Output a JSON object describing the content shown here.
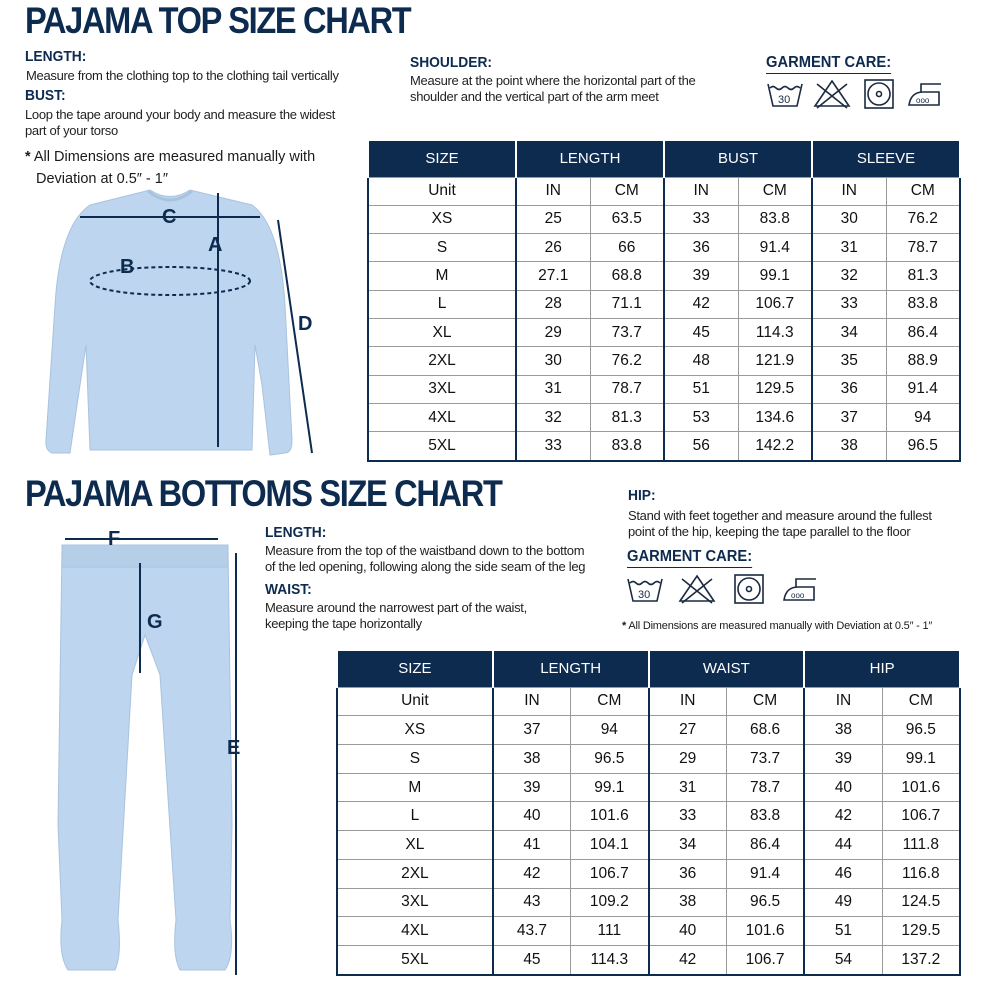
{
  "top": {
    "title": "PAJAMA TOP SIZE CHART",
    "length_label": "LENGTH:",
    "length_desc": "Measure from the clothing top to the clothing tail vertically",
    "bust_label": "BUST:",
    "bust_desc_1": "Loop the tape around your body and measure the widest",
    "bust_desc_2": "part of your torso",
    "note_1": "All Dimensions are measured manually with",
    "note_2": "Deviation at 0.5″ - 1″",
    "shoulder_label": "SHOULDER:",
    "shoulder_desc_1": "Measure at the point where the horizontal part of the",
    "shoulder_desc_2": "shoulder and the vertical part of the arm meet",
    "care_label": "GARMENT CARE:",
    "care_icons": [
      "wash-30-icon",
      "no-bleach-icon",
      "tumble-dry-icon",
      "iron-high-icon"
    ],
    "markers": {
      "a": "A",
      "b": "B",
      "c": "C",
      "d": "D"
    },
    "table": {
      "headers": [
        "SIZE",
        "LENGTH",
        "BUST",
        "SLEEVE"
      ],
      "unit_row": [
        "Unit",
        "IN",
        "CM",
        "IN",
        "CM",
        "IN",
        "CM"
      ],
      "rows": [
        [
          "XS",
          "25",
          "63.5",
          "33",
          "83.8",
          "30",
          "76.2"
        ],
        [
          "S",
          "26",
          "66",
          "36",
          "91.4",
          "31",
          "78.7"
        ],
        [
          "M",
          "27.1",
          "68.8",
          "39",
          "99.1",
          "32",
          "81.3"
        ],
        [
          "L",
          "28",
          "71.1",
          "42",
          "106.7",
          "33",
          "83.8"
        ],
        [
          "XL",
          "29",
          "73.7",
          "45",
          "114.3",
          "34",
          "86.4"
        ],
        [
          "2XL",
          "30",
          "76.2",
          "48",
          "121.9",
          "35",
          "88.9"
        ],
        [
          "3XL",
          "31",
          "78.7",
          "51",
          "129.5",
          "36",
          "91.4"
        ],
        [
          "4XL",
          "32",
          "81.3",
          "53",
          "134.6",
          "37",
          "94"
        ],
        [
          "5XL",
          "33",
          "83.8",
          "56",
          "142.2",
          "38",
          "96.5"
        ]
      ]
    }
  },
  "bottom": {
    "title": "PAJAMA BOTTOMS SIZE CHART",
    "length_label": "LENGTH:",
    "length_desc_1": "Measure from the top of the waistband down to the bottom",
    "length_desc_2": "of the led opening, following along the side seam of the leg",
    "waist_label": "WAIST:",
    "waist_desc_1": "Measure around the narrowest part of the waist,",
    "waist_desc_2": "keeping the tape horizontally",
    "hip_label": "HIP:",
    "hip_desc_1": "Stand with feet together and measure around the fullest",
    "hip_desc_2": "point of the hip, keeping the tape parallel to the floor",
    "care_label": "GARMENT CARE:",
    "note": "All Dimensions are measured manually with Deviation at 0.5″ - 1″",
    "markers": {
      "e": "E",
      "f": "F",
      "g": "G"
    },
    "table": {
      "headers": [
        "SIZE",
        "LENGTH",
        "WAIST",
        "HIP"
      ],
      "unit_row": [
        "Unit",
        "IN",
        "CM",
        "IN",
        "CM",
        "IN",
        "CM"
      ],
      "rows": [
        [
          "XS",
          "37",
          "94",
          "27",
          "68.6",
          "38",
          "96.5"
        ],
        [
          "S",
          "38",
          "96.5",
          "29",
          "73.7",
          "39",
          "99.1"
        ],
        [
          "M",
          "39",
          "99.1",
          "31",
          "78.7",
          "40",
          "101.6"
        ],
        [
          "L",
          "40",
          "101.6",
          "33",
          "83.8",
          "42",
          "106.7"
        ],
        [
          "XL",
          "41",
          "104.1",
          "34",
          "86.4",
          "44",
          "111.8"
        ],
        [
          "2XL",
          "42",
          "106.7",
          "36",
          "91.4",
          "46",
          "116.8"
        ],
        [
          "3XL",
          "43",
          "109.2",
          "38",
          "96.5",
          "49",
          "124.5"
        ],
        [
          "4XL",
          "43.7",
          "111",
          "40",
          "101.6",
          "51",
          "129.5"
        ],
        [
          "5XL",
          "45",
          "114.3",
          "42",
          "106.7",
          "54",
          "137.2"
        ]
      ]
    }
  },
  "colors": {
    "navy": "#0d2a4f",
    "garment": "#bdd5ee",
    "border": "#9a9a9a"
  }
}
